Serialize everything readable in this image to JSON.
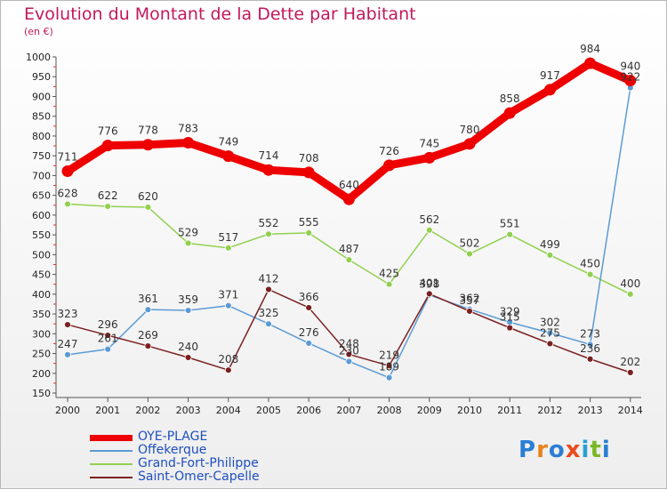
{
  "title": "Evolution du Montant de la Dette par Habitant",
  "unit": "(en €)",
  "logo": {
    "text": "Proxiti",
    "letter_colors": [
      "#2a7fd4",
      "#e8821c",
      "#2a7fd4",
      "#e84c1c",
      "#2a9fd4",
      "#7ab827",
      "#2a7fd4"
    ]
  },
  "chart_data": {
    "type": "line",
    "title": "Evolution du Montant de la Dette par Habitant",
    "ylabel": "(en €)",
    "xlabel": "",
    "ylim": [
      150,
      1000
    ],
    "yticks": [
      150,
      200,
      250,
      300,
      350,
      400,
      450,
      500,
      550,
      600,
      650,
      700,
      750,
      800,
      850,
      900,
      950,
      1000
    ],
    "grid": false,
    "legend_position": "bottom-left",
    "x": [
      "2000",
      "2001",
      "2002",
      "2003",
      "2004",
      "2005",
      "2006",
      "2007",
      "2008",
      "2009",
      "2010",
      "2011",
      "2012",
      "2013",
      "2014"
    ],
    "series": [
      {
        "name": "OYE-PLAGE",
        "color": "#ee0000",
        "values": [
          711,
          776,
          778,
          783,
          749,
          714,
          708,
          640,
          726,
          745,
          780,
          858,
          917,
          984,
          940
        ]
      },
      {
        "name": "Offekerque",
        "color": "#5b9bd5",
        "values": [
          247,
          261,
          361,
          359,
          371,
          325,
          276,
          230,
          189,
          398,
          362,
          329,
          302,
          273,
          922
        ]
      },
      {
        "name": "Grand-Fort-Philippe",
        "color": "#92d050",
        "values": [
          628,
          622,
          620,
          529,
          517,
          552,
          555,
          487,
          425,
          562,
          502,
          551,
          499,
          450,
          400
        ]
      },
      {
        "name": "Saint-Omer-Capelle",
        "color": "#7b2020",
        "values": [
          323,
          296,
          269,
          240,
          208,
          412,
          366,
          248,
          219,
          401,
          357,
          315,
          275,
          236,
          202
        ]
      }
    ]
  }
}
